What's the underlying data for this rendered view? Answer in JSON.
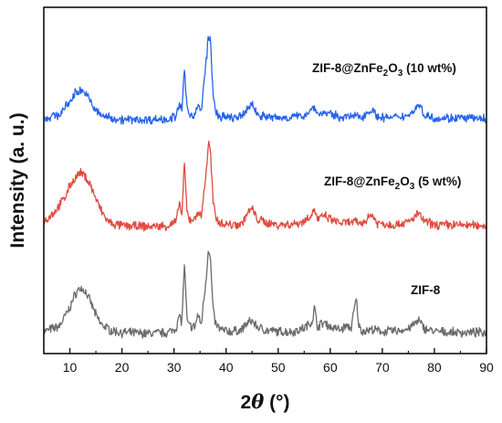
{
  "chart_data": {
    "type": "line",
    "title": "",
    "xlabel": "2θ (°)",
    "xlabel_parts": {
      "symbol": "2",
      "theta": "θ",
      "unit": " (°)"
    },
    "ylabel": "Intensity (a. u.)",
    "xlim": [
      5,
      90
    ],
    "x_ticks": [
      10,
      20,
      30,
      40,
      50,
      60,
      70,
      80,
      90
    ],
    "y_ticks_labeled": false,
    "grid": false,
    "series": [
      {
        "name": "ZIF-8",
        "label_parts": {
          "main": "ZIF-8"
        },
        "color": "#6b6b6b",
        "stack_offset": 0,
        "points": [
          [
            5,
            0.04
          ],
          [
            8,
            0.1
          ],
          [
            10,
            0.3
          ],
          [
            11,
            0.45
          ],
          [
            12,
            0.52
          ],
          [
            13,
            0.48
          ],
          [
            14,
            0.36
          ],
          [
            15,
            0.22
          ],
          [
            16,
            0.12
          ],
          [
            18,
            0.05
          ],
          [
            20,
            0.03
          ],
          [
            25,
            0.02
          ],
          [
            29,
            0.03
          ],
          [
            30.5,
            0.09
          ],
          [
            31,
            0.22
          ],
          [
            31.5,
            0.14
          ],
          [
            32,
            0.78
          ],
          [
            32.5,
            0.16
          ],
          [
            33,
            0.1
          ],
          [
            34,
            0.09
          ],
          [
            34.6,
            0.23
          ],
          [
            35.2,
            0.11
          ],
          [
            36.3,
            0.7
          ],
          [
            36.6,
            0.98
          ],
          [
            37,
            0.82
          ],
          [
            37.5,
            0.28
          ],
          [
            38,
            0.12
          ],
          [
            39,
            0.06
          ],
          [
            41,
            0.04
          ],
          [
            43,
            0.06
          ],
          [
            44,
            0.13
          ],
          [
            45,
            0.16
          ],
          [
            46,
            0.09
          ],
          [
            48,
            0.05
          ],
          [
            50,
            0.04
          ],
          [
            53,
            0.04
          ],
          [
            55,
            0.08
          ],
          [
            56.5,
            0.15
          ],
          [
            57,
            0.3
          ],
          [
            57.5,
            0.1
          ],
          [
            59,
            0.14
          ],
          [
            60,
            0.09
          ],
          [
            62,
            0.06
          ],
          [
            63,
            0.1
          ],
          [
            64,
            0.08
          ],
          [
            65,
            0.4
          ],
          [
            65.5,
            0.1
          ],
          [
            66,
            0.05
          ],
          [
            68,
            0.06
          ],
          [
            70,
            0.04
          ],
          [
            73,
            0.05
          ],
          [
            75,
            0.07
          ],
          [
            76.5,
            0.14
          ],
          [
            77,
            0.16
          ],
          [
            78,
            0.08
          ],
          [
            80,
            0.04
          ],
          [
            84,
            0.03
          ],
          [
            90,
            0.03
          ]
        ]
      },
      {
        "name": "ZIF-8@ZnFe2O3 (5 wt%)",
        "label_parts": {
          "main": "ZIF-8@ZnFe",
          "sub1": "2",
          "mid": "O",
          "sub2": "3",
          "tail": " (5 wt%)"
        },
        "color": "#e04a3f",
        "stack_offset": 1,
        "points": [
          [
            5,
            0.08
          ],
          [
            7,
            0.18
          ],
          [
            9,
            0.34
          ],
          [
            10,
            0.48
          ],
          [
            11,
            0.56
          ],
          [
            12,
            0.62
          ],
          [
            13,
            0.58
          ],
          [
            14,
            0.48
          ],
          [
            15,
            0.33
          ],
          [
            16,
            0.2
          ],
          [
            17,
            0.1
          ],
          [
            18,
            0.05
          ],
          [
            20,
            0.03
          ],
          [
            25,
            0.02
          ],
          [
            29,
            0.03
          ],
          [
            30.5,
            0.08
          ],
          [
            31,
            0.3
          ],
          [
            31.5,
            0.14
          ],
          [
            32,
            0.72
          ],
          [
            32.5,
            0.18
          ],
          [
            33,
            0.1
          ],
          [
            34,
            0.1
          ],
          [
            34.6,
            0.2
          ],
          [
            35.2,
            0.11
          ],
          [
            36.3,
            0.7
          ],
          [
            36.6,
            0.97
          ],
          [
            37,
            0.85
          ],
          [
            37.5,
            0.3
          ],
          [
            38,
            0.12
          ],
          [
            39,
            0.06
          ],
          [
            41,
            0.04
          ],
          [
            43,
            0.05
          ],
          [
            44,
            0.16
          ],
          [
            45,
            0.22
          ],
          [
            46,
            0.1
          ],
          [
            48,
            0.06
          ],
          [
            50,
            0.04
          ],
          [
            53,
            0.05
          ],
          [
            55,
            0.08
          ],
          [
            56.5,
            0.16
          ],
          [
            57,
            0.22
          ],
          [
            57.5,
            0.1
          ],
          [
            59,
            0.14
          ],
          [
            60,
            0.1
          ],
          [
            62,
            0.06
          ],
          [
            65,
            0.07
          ],
          [
            66,
            0.05
          ],
          [
            68,
            0.16
          ],
          [
            69,
            0.06
          ],
          [
            72,
            0.04
          ],
          [
            75,
            0.07
          ],
          [
            76.5,
            0.14
          ],
          [
            77,
            0.17
          ],
          [
            78,
            0.08
          ],
          [
            80,
            0.04
          ],
          [
            84,
            0.04
          ],
          [
            90,
            0.03
          ]
        ]
      },
      {
        "name": "ZIF-8@ZnFe2O3 (10 wt%)",
        "label_parts": {
          "main": "ZIF-8@ZnFe",
          "sub1": "2",
          "mid": "O",
          "sub2": "3",
          "tail": " (10 wt%)"
        },
        "color": "#2563eb",
        "stack_offset": 2,
        "points": [
          [
            5,
            0.03
          ],
          [
            8,
            0.08
          ],
          [
            10,
            0.22
          ],
          [
            11,
            0.32
          ],
          [
            12,
            0.36
          ],
          [
            13,
            0.32
          ],
          [
            14,
            0.22
          ],
          [
            15,
            0.12
          ],
          [
            16,
            0.07
          ],
          [
            18,
            0.04
          ],
          [
            20,
            0.02
          ],
          [
            25,
            0.02
          ],
          [
            29,
            0.03
          ],
          [
            30.5,
            0.06
          ],
          [
            31,
            0.2
          ],
          [
            31.5,
            0.12
          ],
          [
            32,
            0.58
          ],
          [
            32.5,
            0.14
          ],
          [
            33,
            0.08
          ],
          [
            34,
            0.08
          ],
          [
            34.6,
            0.18
          ],
          [
            35.2,
            0.1
          ],
          [
            36.3,
            0.75
          ],
          [
            36.6,
            0.99
          ],
          [
            37,
            0.9
          ],
          [
            37.5,
            0.3
          ],
          [
            38,
            0.1
          ],
          [
            39,
            0.05
          ],
          [
            41,
            0.04
          ],
          [
            43,
            0.05
          ],
          [
            44,
            0.14
          ],
          [
            45,
            0.2
          ],
          [
            46,
            0.08
          ],
          [
            48,
            0.05
          ],
          [
            50,
            0.04
          ],
          [
            53,
            0.05
          ],
          [
            55,
            0.07
          ],
          [
            56.5,
            0.14
          ],
          [
            57,
            0.18
          ],
          [
            57.5,
            0.08
          ],
          [
            59,
            0.1
          ],
          [
            60,
            0.08
          ],
          [
            62,
            0.05
          ],
          [
            65,
            0.06
          ],
          [
            66,
            0.05
          ],
          [
            68,
            0.14
          ],
          [
            69,
            0.05
          ],
          [
            72,
            0.04
          ],
          [
            75,
            0.07
          ],
          [
            76.5,
            0.15
          ],
          [
            77,
            0.2
          ],
          [
            78,
            0.08
          ],
          [
            80,
            0.04
          ],
          [
            84,
            0.04
          ],
          [
            90,
            0.03
          ]
        ]
      }
    ]
  }
}
